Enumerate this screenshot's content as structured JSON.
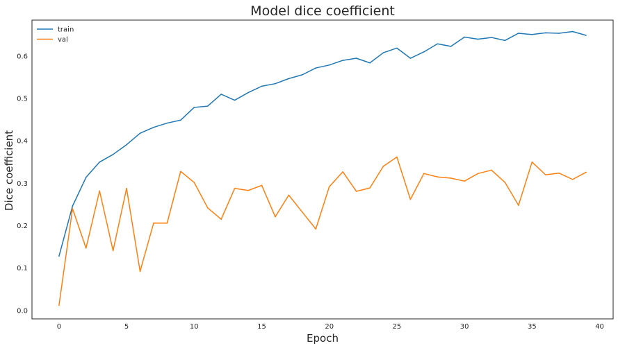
{
  "chart_data": {
    "type": "line",
    "title": "Model dice coefficient",
    "xlabel": "Epoch",
    "ylabel": "Dice coefficient",
    "xlim": [
      -2,
      41
    ],
    "ylim": [
      -0.02,
      0.685
    ],
    "xticks": [
      0,
      5,
      10,
      15,
      20,
      25,
      30,
      35,
      40
    ],
    "yticks": [
      0.0,
      0.1,
      0.2,
      0.3,
      0.4,
      0.5,
      0.6
    ],
    "ytick_labels": [
      "0.0",
      "0.1",
      "0.2",
      "0.3",
      "0.4",
      "0.5",
      "0.6"
    ],
    "grid": false,
    "legend_position": "top-left",
    "x": [
      0,
      1,
      2,
      3,
      4,
      5,
      6,
      7,
      8,
      9,
      10,
      11,
      12,
      13,
      14,
      15,
      16,
      17,
      18,
      19,
      20,
      21,
      22,
      23,
      24,
      25,
      26,
      27,
      28,
      29,
      30,
      31,
      32,
      33,
      34,
      35,
      36,
      37,
      38,
      39
    ],
    "series": [
      {
        "name": "train",
        "color": "#1f77b4",
        "values": [
          0.128,
          0.246,
          0.314,
          0.35,
          0.368,
          0.391,
          0.418,
          0.432,
          0.442,
          0.449,
          0.479,
          0.482,
          0.51,
          0.496,
          0.514,
          0.529,
          0.535,
          0.547,
          0.556,
          0.572,
          0.579,
          0.59,
          0.595,
          0.584,
          0.608,
          0.619,
          0.595,
          0.61,
          0.629,
          0.623,
          0.645,
          0.64,
          0.644,
          0.637,
          0.654,
          0.651,
          0.655,
          0.654,
          0.658,
          0.649
        ]
      },
      {
        "name": "val",
        "color": "#ff7f0e",
        "values": [
          0.012,
          0.24,
          0.147,
          0.282,
          0.141,
          0.288,
          0.092,
          0.206,
          0.206,
          0.328,
          0.302,
          0.242,
          0.215,
          0.288,
          0.283,
          0.295,
          0.221,
          0.272,
          0.232,
          0.192,
          0.292,
          0.327,
          0.281,
          0.289,
          0.34,
          0.362,
          0.262,
          0.323,
          0.315,
          0.312,
          0.305,
          0.323,
          0.331,
          0.302,
          0.248,
          0.35,
          0.32,
          0.324,
          0.309,
          0.326
        ]
      }
    ]
  }
}
